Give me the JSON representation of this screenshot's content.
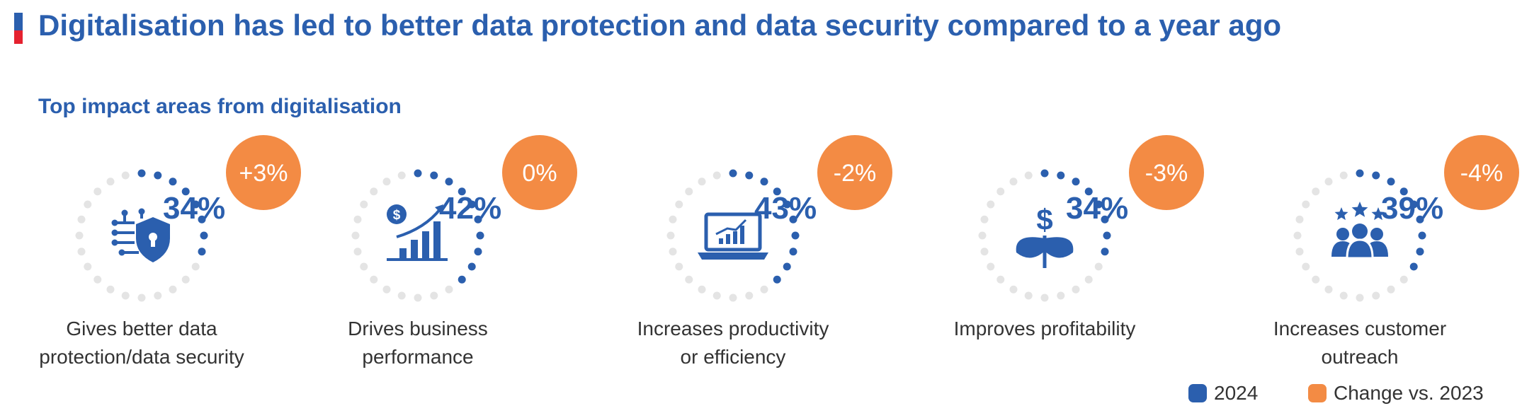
{
  "title": "Digitalisation has led to better data protection and data security compared to a year ago",
  "subtitle": "Top impact areas from digitalisation",
  "colors": {
    "primary": "#2b5fae",
    "accent": "#f38b44",
    "track": "#e4e4e4",
    "title_bar_top": "#2b5fae",
    "title_bar_bottom": "#e5212f"
  },
  "chart_data": {
    "type": "radial-progress",
    "title": "Digitalisation has led to better data protection and data security compared to a year ago",
    "subtitle": "Top impact areas from digitalisation",
    "series": [
      {
        "name": "2024",
        "unit": "%"
      },
      {
        "name": "Change vs. 2023",
        "unit": "%"
      }
    ],
    "items": [
      {
        "label": "Gives better data protection/data security",
        "label_lines": [
          "Gives better data",
          "protection/data security"
        ],
        "value": 34,
        "value_text": "34%",
        "change": 3,
        "change_text": "+3%",
        "icon": "shield-lock-circuit-icon"
      },
      {
        "label": "Drives business performance",
        "label_lines": [
          "Drives business",
          "performance"
        ],
        "value": 42,
        "value_text": "42%",
        "change": 0,
        "change_text": "0%",
        "icon": "growth-chart-icon"
      },
      {
        "label": "Increases productivity or efficiency",
        "label_lines": [
          "Increases productivity",
          "or efficiency"
        ],
        "value": 43,
        "value_text": "43%",
        "change": -2,
        "change_text": "-2%",
        "icon": "laptop-chart-icon"
      },
      {
        "label": "Improves profitability",
        "label_lines": [
          "Improves profitability",
          ""
        ],
        "value": 34,
        "value_text": "34%",
        "change": -3,
        "change_text": "-3%",
        "icon": "money-plant-icon"
      },
      {
        "label": "Increases customer outreach",
        "label_lines": [
          "Increases customer",
          "outreach"
        ],
        "value": 39,
        "value_text": "39%",
        "change": -4,
        "change_text": "-4%",
        "icon": "customers-stars-icon"
      }
    ]
  },
  "legend": [
    {
      "label": "2024",
      "color": "#2b5fae"
    },
    {
      "label": "Change vs. 2023",
      "color": "#f38b44"
    }
  ]
}
